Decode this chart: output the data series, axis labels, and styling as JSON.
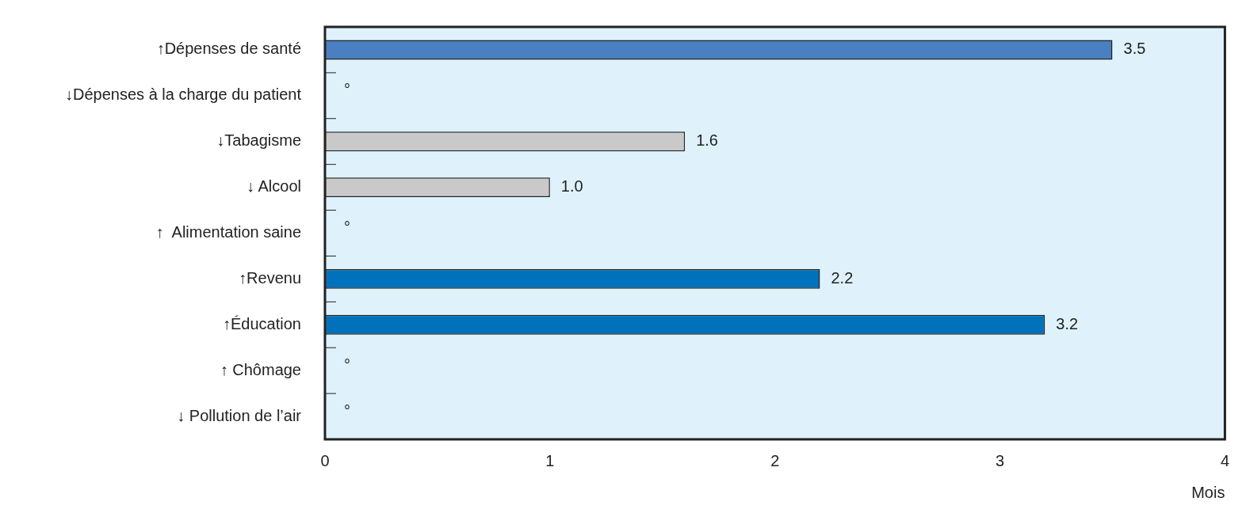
{
  "chart_data": {
    "type": "bar",
    "orientation": "horizontal",
    "xlabel": "Mois",
    "categories": [
      "↑Dépenses de santé",
      "↓Dépenses à la charge du patient",
      "↓Tabagisme",
      "↓ Alcool",
      "↑  Alimentation saine",
      "↑Revenu",
      "↑Éducation",
      "↑ Chômage",
      "↓ Pollution de l’air"
    ],
    "values": [
      3.5,
      null,
      1.6,
      1.0,
      null,
      2.2,
      3.2,
      null,
      null
    ],
    "colors": [
      "#4a7fc1",
      "#4a7fc1",
      "#c9c9c9",
      "#c9c9c9",
      "#0071bb",
      "#0071bb",
      "#0071bb",
      "#0071bb",
      "#0071bb"
    ],
    "value_labels": [
      "3.5",
      "°",
      "1.6",
      "1.0",
      "°",
      "2.2",
      "3.2",
      "°",
      "°"
    ],
    "xlim": [
      0,
      4
    ],
    "xticks": [
      0,
      1,
      2,
      3,
      4
    ],
    "grid": false,
    "legend": false
  }
}
